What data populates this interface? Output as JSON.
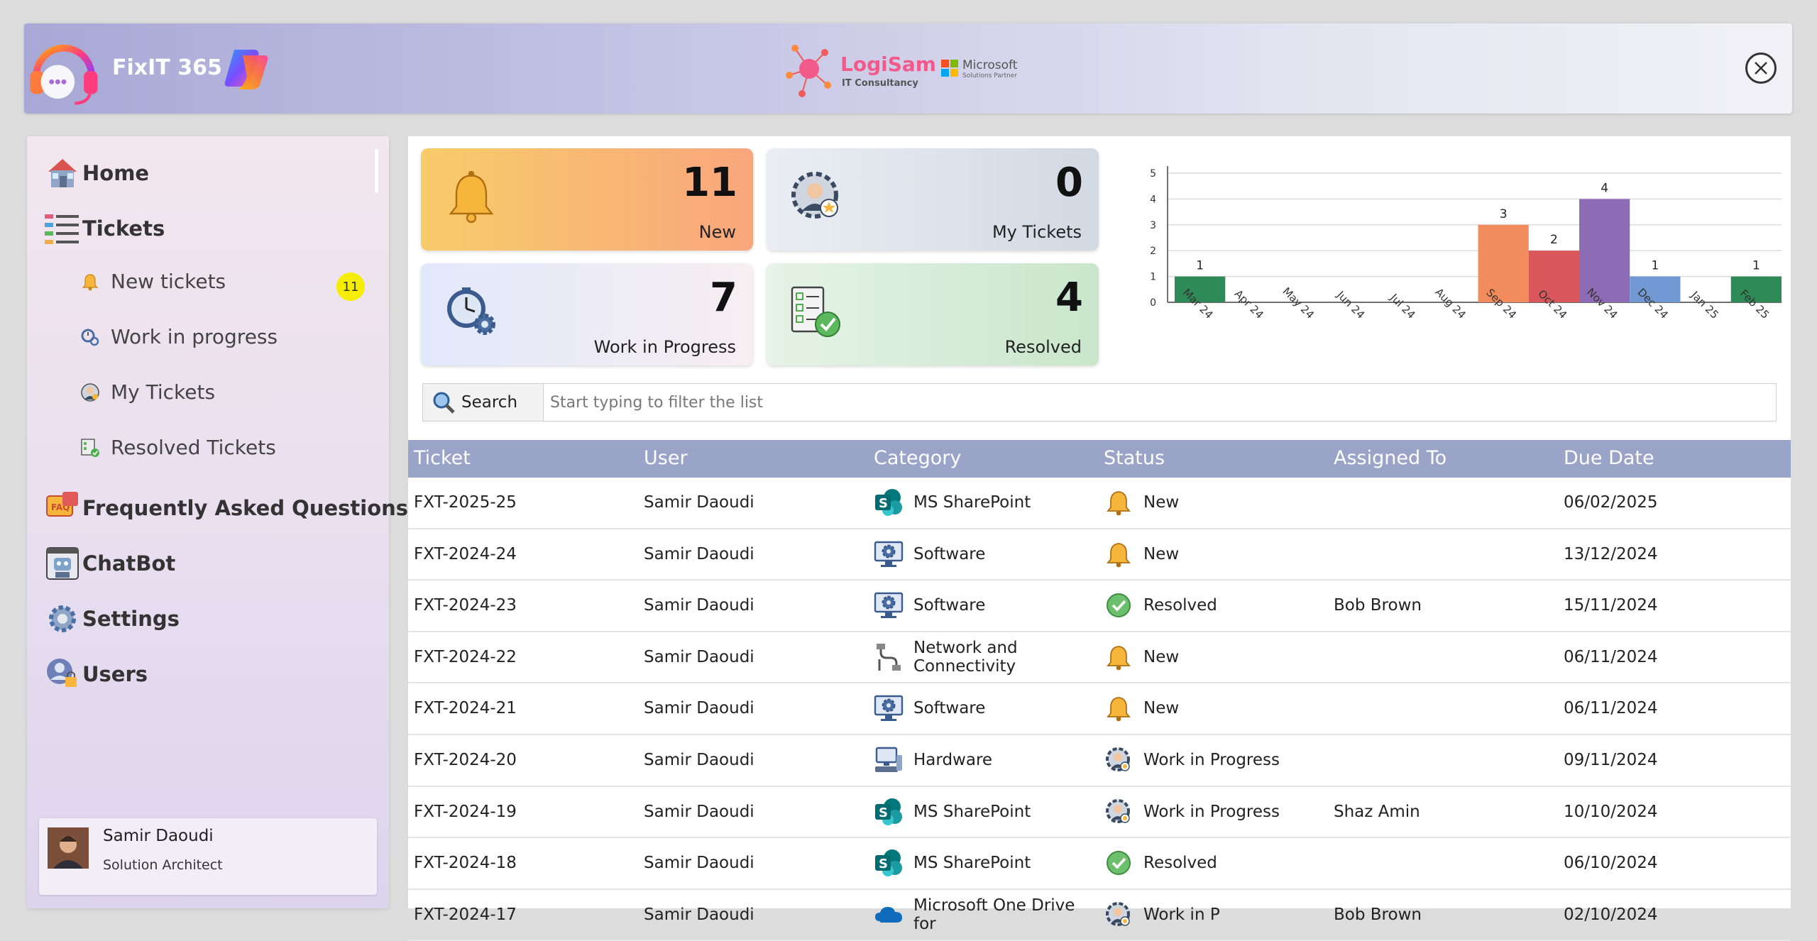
{
  "header": {
    "app_title": "FixIT 365",
    "brand_name": "LogiSam",
    "brand_sub": "IT Consultancy",
    "ms_name": "Microsoft",
    "ms_sub": "Solutions Partner"
  },
  "sidebar": {
    "home": "Home",
    "tickets": "Tickets",
    "new_tickets": "New tickets",
    "new_tickets_badge": "11",
    "work_in_progress": "Work in progress",
    "my_tickets": "My Tickets",
    "resolved_tickets": "Resolved Tickets",
    "faq": "Frequently Asked Questions",
    "chatbot": "ChatBot",
    "settings": "Settings",
    "users": "Users",
    "user": {
      "name": "Samir Daoudi",
      "role": "Solution Architect"
    }
  },
  "cards": {
    "new": {
      "value": "11",
      "label": "New"
    },
    "my": {
      "value": "0",
      "label": "My Tickets"
    },
    "wip": {
      "value": "7",
      "label": "Work in Progress"
    },
    "resolved": {
      "value": "4",
      "label": "Resolved"
    }
  },
  "chart_data": {
    "type": "bar",
    "categories": [
      "Mar 24",
      "Apr 24",
      "May 24",
      "Jun 24",
      "Jul 24",
      "Aug 24",
      "Sep 24",
      "Oct 24",
      "Nov 24",
      "Dec 24",
      "Jan 25",
      "Feb 25"
    ],
    "values": [
      1,
      0,
      0,
      0,
      0,
      0,
      3,
      2,
      4,
      1,
      0,
      1
    ],
    "colors": [
      "#2e8b57",
      "#2e8b57",
      "#2e8b57",
      "#2e8b57",
      "#2e8b57",
      "#2e8b57",
      "#f28c5c",
      "#d9565b",
      "#8e6bb5",
      "#7099d4",
      "#2e8b57",
      "#2e8b57"
    ],
    "data_labels": [
      "1",
      "",
      "",
      "",
      "",
      "",
      "3",
      "2",
      "4",
      "1",
      "",
      "1"
    ],
    "yticks": [
      "0",
      "1",
      "2",
      "3",
      "4",
      "5"
    ],
    "ylim": [
      0,
      5
    ],
    "grid": true
  },
  "search": {
    "button_label": "Search",
    "placeholder": "Start typing to filter the list"
  },
  "table": {
    "columns": [
      "Ticket",
      "User",
      "Category",
      "Status",
      "Assigned To",
      "Due Date"
    ],
    "rows": [
      {
        "ticket": "FXT-2025-25",
        "user": "Samir Daoudi",
        "category": "MS SharePoint",
        "category_icon": "sharepoint-icon",
        "status": "New",
        "status_icon": "bell-icon",
        "assigned": "",
        "due": "06/02/2025"
      },
      {
        "ticket": "FXT-2024-24",
        "user": "Samir Daoudi",
        "category": "Software",
        "category_icon": "software-icon",
        "status": "New",
        "status_icon": "bell-icon",
        "assigned": "",
        "due": "13/12/2024"
      },
      {
        "ticket": "FXT-2024-23",
        "user": "Samir Daoudi",
        "category": "Software",
        "category_icon": "software-icon",
        "status": "Resolved",
        "status_icon": "check-icon",
        "assigned": "Bob Brown",
        "due": "15/11/2024"
      },
      {
        "ticket": "FXT-2024-22",
        "user": "Samir Daoudi",
        "category": "Network and Connectivity",
        "category_icon": "network-icon",
        "status": "New",
        "status_icon": "bell-icon",
        "assigned": "",
        "due": "06/11/2024"
      },
      {
        "ticket": "FXT-2024-21",
        "user": "Samir Daoudi",
        "category": "Software",
        "category_icon": "software-icon",
        "status": "New",
        "status_icon": "bell-icon",
        "assigned": "",
        "due": "06/11/2024"
      },
      {
        "ticket": "FXT-2024-20",
        "user": "Samir Daoudi",
        "category": "Hardware",
        "category_icon": "hardware-icon",
        "status": "Work in Progress",
        "status_icon": "agent-icon",
        "assigned": "",
        "due": "09/11/2024"
      },
      {
        "ticket": "FXT-2024-19",
        "user": "Samir Daoudi",
        "category": "MS SharePoint",
        "category_icon": "sharepoint-icon",
        "status": "Work in Progress",
        "status_icon": "agent-icon",
        "assigned": "Shaz Amin",
        "due": "10/10/2024"
      },
      {
        "ticket": "FXT-2024-18",
        "user": "Samir Daoudi",
        "category": "MS SharePoint",
        "category_icon": "sharepoint-icon",
        "status": "Resolved",
        "status_icon": "check-icon",
        "assigned": "",
        "due": "06/10/2024"
      },
      {
        "ticket": "FXT-2024-17",
        "user": "Samir Daoudi",
        "category": "Microsoft One Drive for",
        "category_icon": "onedrive-icon",
        "status": "Work in P",
        "status_icon": "agent-icon",
        "assigned": "Bob Brown",
        "due": "02/10/2024"
      }
    ]
  }
}
